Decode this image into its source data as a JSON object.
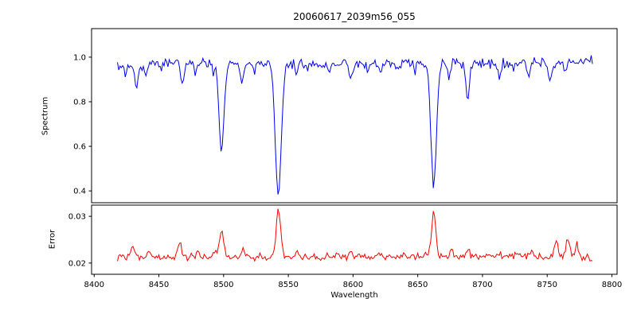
{
  "chart_data": {
    "type": "line",
    "title": "20060617_2039m56_055",
    "xlabel": "Wavelength",
    "xlim": [
      8398,
      8804
    ],
    "x_ticks": [
      8400,
      8450,
      8500,
      8550,
      8600,
      8650,
      8700,
      8750,
      8800
    ],
    "data_x_range": [
      8418,
      8785
    ],
    "sample_step": 1.0,
    "noise_seed": 123456,
    "panels": [
      {
        "name": "spectrum",
        "ylabel": "Spectrum",
        "line_color": "#0000ee",
        "ylim": [
          0.347,
          1.128
        ],
        "yticks": [
          0.4,
          0.6,
          0.8,
          1.0
        ],
        "ytick_decimals": 1,
        "noise_amplitude": 0.022,
        "features_sign": -1,
        "continuum": [
          [
            8418,
            0.962
          ],
          [
            8480,
            0.976
          ],
          [
            8560,
            0.972
          ],
          [
            8640,
            0.975
          ],
          [
            8720,
            0.97
          ],
          [
            8785,
            0.984
          ]
        ],
        "features": [
          {
            "center": 8424.0,
            "amp": 0.05,
            "sigma": 1.2
          },
          {
            "center": 8433.0,
            "amp": 0.09,
            "sigma": 1.3
          },
          {
            "center": 8440.0,
            "amp": 0.04,
            "sigma": 1.0
          },
          {
            "center": 8452.0,
            "amp": 0.03,
            "sigma": 1.0
          },
          {
            "center": 8468.0,
            "amp": 0.09,
            "sigma": 1.4
          },
          {
            "center": 8478.0,
            "amp": 0.04,
            "sigma": 1.0
          },
          {
            "center": 8492.0,
            "amp": 0.05,
            "sigma": 1.0
          },
          {
            "center": 8498.4,
            "amp": 0.4,
            "sigma": 1.9
          },
          {
            "center": 8514.0,
            "amp": 0.1,
            "sigma": 1.3
          },
          {
            "center": 8524.0,
            "amp": 0.04,
            "sigma": 1.0
          },
          {
            "center": 8542.3,
            "amp": 0.6,
            "sigma": 2.3
          },
          {
            "center": 8556.0,
            "amp": 0.05,
            "sigma": 1.1
          },
          {
            "center": 8564.0,
            "amp": 0.03,
            "sigma": 1.0
          },
          {
            "center": 8582.0,
            "amp": 0.04,
            "sigma": 1.0
          },
          {
            "center": 8598.0,
            "amp": 0.08,
            "sigma": 1.3
          },
          {
            "center": 8611.0,
            "amp": 0.04,
            "sigma": 1.0
          },
          {
            "center": 8621.0,
            "amp": 0.05,
            "sigma": 1.0
          },
          {
            "center": 8634.0,
            "amp": 0.03,
            "sigma": 1.0
          },
          {
            "center": 8648.0,
            "amp": 0.04,
            "sigma": 1.0
          },
          {
            "center": 8662.3,
            "amp": 0.55,
            "sigma": 2.1
          },
          {
            "center": 8674.0,
            "amp": 0.05,
            "sigma": 1.0
          },
          {
            "center": 8688.5,
            "amp": 0.15,
            "sigma": 1.4
          },
          {
            "center": 8713.0,
            "amp": 0.05,
            "sigma": 1.1
          },
          {
            "center": 8724.0,
            "amp": 0.03,
            "sigma": 1.0
          },
          {
            "center": 8736.0,
            "amp": 0.06,
            "sigma": 1.2
          },
          {
            "center": 8752.0,
            "amp": 0.09,
            "sigma": 1.3
          },
          {
            "center": 8764.0,
            "amp": 0.04,
            "sigma": 1.0
          }
        ]
      },
      {
        "name": "error",
        "ylabel": "Error",
        "line_color": "#ff0000",
        "ylim": [
          0.0176,
          0.0324
        ],
        "yticks": [
          0.02,
          0.03
        ],
        "ytick_decimals": 2,
        "noise_amplitude": 0.0007,
        "features_sign": 1,
        "continuum": [
          [
            8418,
            0.0212
          ],
          [
            8500,
            0.0212
          ],
          [
            8600,
            0.0213
          ],
          [
            8700,
            0.0214
          ],
          [
            8755,
            0.0216
          ],
          [
            8780,
            0.0213
          ],
          [
            8785,
            0.0206
          ]
        ],
        "features": [
          {
            "center": 8430.0,
            "amp": 0.003,
            "sigma": 1.4
          },
          {
            "center": 8442.0,
            "amp": 0.0012,
            "sigma": 1.0
          },
          {
            "center": 8466.0,
            "amp": 0.0034,
            "sigma": 1.4
          },
          {
            "center": 8480.0,
            "amp": 0.0008,
            "sigma": 1.0
          },
          {
            "center": 8493.0,
            "amp": 0.0012,
            "sigma": 1.0
          },
          {
            "center": 8498.4,
            "amp": 0.006,
            "sigma": 1.5
          },
          {
            "center": 8515.0,
            "amp": 0.0018,
            "sigma": 1.2
          },
          {
            "center": 8528.0,
            "amp": 0.0008,
            "sigma": 1.0
          },
          {
            "center": 8542.3,
            "amp": 0.0103,
            "sigma": 1.7
          },
          {
            "center": 8557.0,
            "amp": 0.0014,
            "sigma": 1.1
          },
          {
            "center": 8570.0,
            "amp": 0.0006,
            "sigma": 1.0
          },
          {
            "center": 8598.0,
            "amp": 0.0012,
            "sigma": 1.1
          },
          {
            "center": 8620.0,
            "amp": 0.0008,
            "sigma": 1.0
          },
          {
            "center": 8640.0,
            "amp": 0.0006,
            "sigma": 1.0
          },
          {
            "center": 8662.3,
            "amp": 0.0098,
            "sigma": 1.6
          },
          {
            "center": 8676.0,
            "amp": 0.0014,
            "sigma": 1.0
          },
          {
            "center": 8689.0,
            "amp": 0.0018,
            "sigma": 1.2
          },
          {
            "center": 8713.0,
            "amp": 0.0008,
            "sigma": 1.0
          },
          {
            "center": 8737.0,
            "amp": 0.001,
            "sigma": 1.0
          },
          {
            "center": 8757.0,
            "amp": 0.0032,
            "sigma": 1.4
          },
          {
            "center": 8766.0,
            "amp": 0.004,
            "sigma": 1.4
          },
          {
            "center": 8773.0,
            "amp": 0.0026,
            "sigma": 1.2
          }
        ]
      }
    ]
  }
}
